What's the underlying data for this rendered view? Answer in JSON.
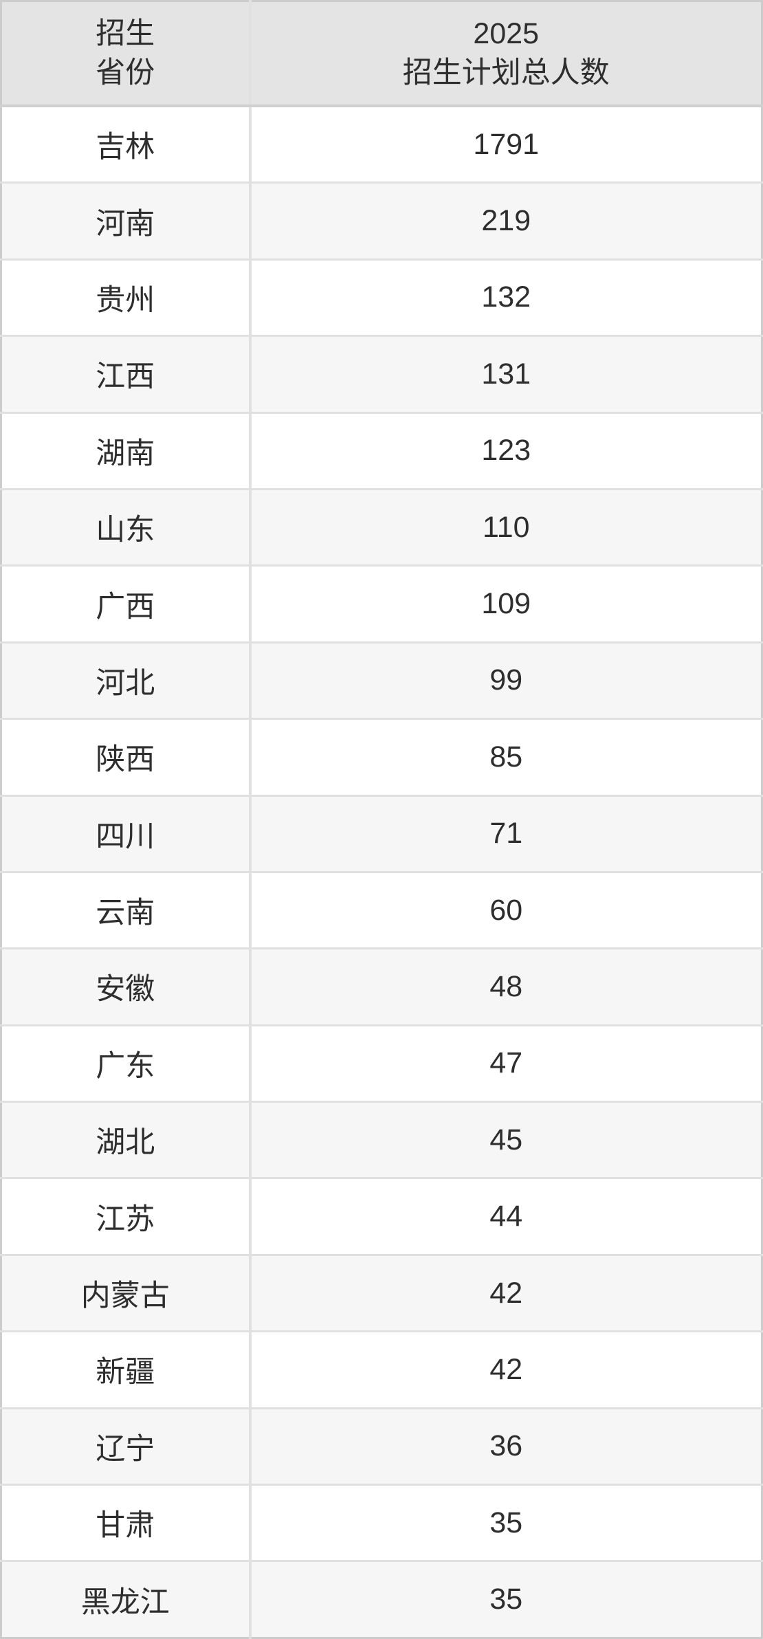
{
  "table": {
    "header": {
      "province": [
        "招生",
        "省份"
      ],
      "total": [
        "2025",
        "招生计划总人数"
      ]
    },
    "rows": [
      {
        "province": "吉林",
        "total": "1791"
      },
      {
        "province": "河南",
        "total": "219"
      },
      {
        "province": "贵州",
        "total": "132"
      },
      {
        "province": "江西",
        "total": "131"
      },
      {
        "province": "湖南",
        "total": "123"
      },
      {
        "province": "山东",
        "total": "110"
      },
      {
        "province": "广西",
        "total": "109"
      },
      {
        "province": "河北",
        "total": "99"
      },
      {
        "province": "陕西",
        "total": "85"
      },
      {
        "province": "四川",
        "total": "71"
      },
      {
        "province": "云南",
        "total": "60"
      },
      {
        "province": "安徽",
        "total": "48"
      },
      {
        "province": "广东",
        "total": "47"
      },
      {
        "province": "湖北",
        "total": "45"
      },
      {
        "province": "江苏",
        "total": "44"
      },
      {
        "province": "内蒙古",
        "total": "42"
      },
      {
        "province": "新疆",
        "total": "42"
      },
      {
        "province": "辽宁",
        "total": "36"
      },
      {
        "province": "甘肃",
        "total": "35"
      },
      {
        "province": "黑龙江",
        "total": "35"
      }
    ]
  },
  "colors": {
    "header_bg": "#e4e4e4",
    "row_bg": "#ffffff",
    "row_alt_bg": "#f6f6f6",
    "border_outer": "#cccccc",
    "border_header": "#d0d0d0",
    "border_inner": "#e0e0e0",
    "text": "#2e2e2e"
  },
  "chart_data": {
    "type": "table",
    "columns": [
      "招生省份",
      "2025招生计划总人数"
    ],
    "categories": [
      "吉林",
      "河南",
      "贵州",
      "江西",
      "湖南",
      "山东",
      "广西",
      "河北",
      "陕西",
      "四川",
      "云南",
      "安徽",
      "广东",
      "湖北",
      "江苏",
      "内蒙古",
      "新疆",
      "辽宁",
      "甘肃",
      "黑龙江"
    ],
    "values": [
      1791,
      219,
      132,
      131,
      123,
      110,
      109,
      99,
      85,
      71,
      60,
      48,
      47,
      45,
      44,
      42,
      42,
      36,
      35,
      35
    ]
  }
}
